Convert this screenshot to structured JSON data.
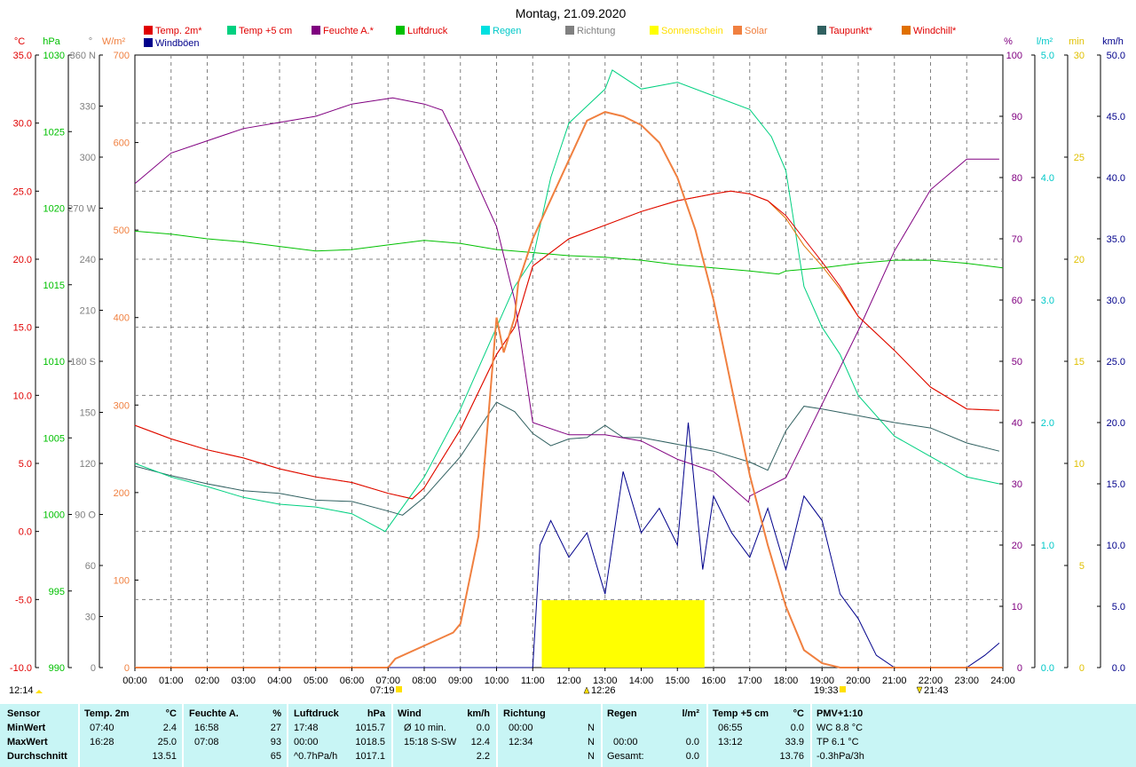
{
  "title": "Montag, 21.09.2020",
  "legend": [
    {
      "label": "Temp. 2m*",
      "color": "#e00000",
      "text_color": "#e00000"
    },
    {
      "label": "Temp +5 cm",
      "color": "#00d080",
      "text_color": "#e00000"
    },
    {
      "label": "Feuchte A.*",
      "color": "#800080",
      "text_color": "#e00000"
    },
    {
      "label": "Luftdruck",
      "color": "#00c000",
      "text_color": "#e00000"
    },
    {
      "label": "Regen",
      "color": "#00e0e0",
      "text_color": "#00c8c8"
    },
    {
      "label": "Richtung",
      "color": "#808080",
      "text_color": "#808080"
    },
    {
      "label": "Sonnenschein",
      "color": "#ffff00",
      "text_color": "#ffe000"
    },
    {
      "label": "Solar",
      "color": "#f08040",
      "text_color": "#f08040"
    },
    {
      "label": "Taupunkt*",
      "color": "#306060",
      "text_color": "#e00000"
    },
    {
      "label": "Windchill*",
      "color": "#e07000",
      "text_color": "#e00000"
    },
    {
      "label": "Windböen",
      "color": "#00008b",
      "text_color": "#00008b"
    }
  ],
  "axes": {
    "temp": {
      "unit": "°C",
      "color": "#e00000",
      "ticks": [
        "35.0",
        "30.0",
        "25.0",
        "20.0",
        "15.0",
        "10.0",
        "5.0",
        "0.0",
        "-5.0",
        "-10.0"
      ]
    },
    "pressure": {
      "unit": "hPa",
      "color": "#00c000",
      "ticks": [
        "1030",
        "1025",
        "1020",
        "1015",
        "1010",
        "1005",
        "1000",
        "995",
        "990"
      ]
    },
    "direction": {
      "unit": "°",
      "color": "#808080",
      "ticks": [
        "360 N",
        "330",
        "300",
        "270 W",
        "240",
        "210",
        "180 S",
        "150",
        "120",
        "90 O",
        "60",
        "30",
        "0"
      ]
    },
    "solar": {
      "unit": "W/m²",
      "color": "#f08040",
      "ticks": [
        "700",
        "600",
        "500",
        "400",
        "300",
        "200",
        "100",
        "0"
      ]
    },
    "humidity": {
      "unit": "%",
      "color": "#800080",
      "ticks": [
        "100",
        "90",
        "80",
        "70",
        "60",
        "50",
        "40",
        "30",
        "20",
        "10",
        "0"
      ]
    },
    "rain": {
      "unit": "l/m²",
      "color": "#00c8c8",
      "ticks": [
        "5.0",
        "4.0",
        "3.0",
        "2.0",
        "1.0",
        "0.0"
      ]
    },
    "sunshine": {
      "unit": "min",
      "color": "#e0c000",
      "ticks": [
        "30",
        "25",
        "20",
        "15",
        "10",
        "5",
        "0"
      ]
    },
    "wind": {
      "unit": "km/h",
      "color": "#00008b",
      "ticks": [
        "50.0",
        "45.0",
        "40.0",
        "35.0",
        "30.0",
        "25.0",
        "20.0",
        "15.0",
        "10.0",
        "5.0",
        "0.0"
      ]
    }
  },
  "time_ticks": [
    "00:00",
    "01:00",
    "02:00",
    "03:00",
    "04:00",
    "05:00",
    "06:00",
    "07:00",
    "08:00",
    "09:00",
    "10:00",
    "11:00",
    "12:00",
    "13:00",
    "14:00",
    "15:00",
    "16:00",
    "17:00",
    "18:00",
    "19:00",
    "20:00",
    "21:00",
    "22:00",
    "23:00",
    "24:00"
  ],
  "sun_markers": {
    "noon_left": "12:14",
    "sunrise": "07:19",
    "culmination": "12:26",
    "sunset": "19:33",
    "moonset": "21:43"
  },
  "stats": {
    "headers": {
      "sensor": "Sensor",
      "temp": "Temp. 2m",
      "temp_unit": "°C",
      "hum": "Feuchte A.",
      "hum_unit": "%",
      "press": "Luftdruck",
      "press_unit": "hPa",
      "wind": "Wind",
      "wind_unit": "km/h",
      "dir": "Richtung",
      "rain": "Regen",
      "rain_unit": "l/m²",
      "t5": "Temp +5 cm",
      "t5_unit": "°C",
      "pmv": "PMV+1:10"
    },
    "rows": [
      {
        "label": "MinWert",
        "temp_time": "07:40",
        "temp": "2.4",
        "hum_time": "16:58",
        "hum": "27",
        "press_time": "17:48",
        "press": "1015.7",
        "wind_label": "Ø 10 min.",
        "wind": "0.0",
        "dir_time": "00:00",
        "dir": "N",
        "rain_time": "",
        "rain": "",
        "t5_time": "06:55",
        "t5": "0.0",
        "pmv": "WC 8.8 °C"
      },
      {
        "label": "MaxWert",
        "temp_time": "16:28",
        "temp": "25.0",
        "hum_time": "07:08",
        "hum": "93",
        "press_time": "00:00",
        "press": "1018.5",
        "wind_label": "15:18   S-SW",
        "wind": "12.4",
        "dir_time": "12:34",
        "dir": "N",
        "rain_time": "00:00",
        "rain": "0.0",
        "t5_time": "13:12",
        "t5": "33.9",
        "pmv": "TP 6.1 °C"
      },
      {
        "label": "Durchschnitt",
        "temp_time": "",
        "temp": "13.51",
        "hum_time": "",
        "hum": "65",
        "press_time": "^0.7hPa/h",
        "press": "1017.1",
        "wind_label": "",
        "wind": "2.2",
        "dir_time": "",
        "dir": "N",
        "rain_time": "Gesamt:",
        "rain": "0.0",
        "t5_time": "",
        "t5": "13.76",
        "pmv": "-0.3hPa/3h"
      }
    ]
  },
  "chart_data": {
    "type": "line",
    "title": "Montag, 21.09.2020",
    "x_range": [
      "00:00",
      "24:00"
    ],
    "sunshine_block": {
      "start": "11:15",
      "end": "15:45",
      "minutes": 3.3
    },
    "series": [
      {
        "name": "Temp. 2m*",
        "unit": "°C",
        "x": [
          0,
          1,
          2,
          3,
          4,
          5,
          6,
          7,
          7.67,
          8,
          9,
          10,
          10.5,
          11,
          12,
          13,
          14,
          15,
          16,
          16.47,
          17,
          17.5,
          18,
          18.5,
          19,
          19.5,
          20,
          21,
          22,
          23,
          23.9
        ],
        "y": [
          7.8,
          6.8,
          6.0,
          5.4,
          4.6,
          4.0,
          3.6,
          2.8,
          2.4,
          3.2,
          7.5,
          13.0,
          15.0,
          19.5,
          21.5,
          22.5,
          23.5,
          24.3,
          24.8,
          25.0,
          24.8,
          24.3,
          23.2,
          21.5,
          19.8,
          18.0,
          15.8,
          13.3,
          10.6,
          9.0,
          8.9
        ]
      },
      {
        "name": "Temp +5 cm",
        "unit": "°C",
        "x": [
          0,
          1,
          2,
          3,
          4,
          5,
          6,
          6.92,
          7,
          8,
          9,
          10,
          10.5,
          11,
          11.5,
          12,
          13,
          13.2,
          14,
          15,
          16,
          17,
          17.6,
          18,
          18.5,
          19,
          19.5,
          20,
          21,
          22,
          23,
          23.9
        ],
        "y": [
          5.0,
          4.0,
          3.3,
          2.5,
          2.0,
          1.8,
          1.3,
          0.0,
          0.3,
          4.0,
          9.0,
          15.0,
          18.0,
          20.0,
          26.0,
          30.0,
          32.5,
          33.9,
          32.5,
          33.0,
          32.0,
          31.0,
          29.0,
          26.5,
          18.0,
          15.0,
          13.0,
          10.0,
          7.0,
          5.5,
          4.0,
          3.5
        ]
      },
      {
        "name": "Feuchte A.*",
        "unit": "%",
        "x": [
          0,
          1,
          2,
          3,
          4,
          5,
          6,
          7.13,
          8,
          8.5,
          9,
          10,
          10.5,
          11,
          12,
          13,
          14,
          15,
          16,
          16.97,
          17,
          18,
          19,
          20,
          21,
          22,
          23,
          23.9
        ],
        "y": [
          79,
          84,
          86,
          88,
          89,
          90,
          92,
          93,
          92,
          91,
          85,
          72,
          60,
          40,
          38,
          38,
          37,
          34,
          32,
          27,
          28,
          31,
          43,
          55,
          68,
          78,
          83,
          83
        ]
      },
      {
        "name": "Luftdruck",
        "unit": "hPa",
        "x": [
          0,
          1,
          2,
          3,
          4,
          5,
          6,
          7,
          8,
          9,
          10,
          11,
          12,
          13,
          14,
          15,
          16,
          17,
          17.8,
          18,
          19,
          20,
          21,
          22,
          23,
          24
        ],
        "y": [
          1018.5,
          1018.3,
          1018.0,
          1017.8,
          1017.5,
          1017.2,
          1017.3,
          1017.6,
          1017.9,
          1017.7,
          1017.3,
          1017.1,
          1016.9,
          1016.8,
          1016.6,
          1016.3,
          1016.1,
          1015.9,
          1015.7,
          1015.9,
          1016.1,
          1016.4,
          1016.6,
          1016.6,
          1016.4,
          1016.1
        ]
      },
      {
        "name": "Solar",
        "unit": "W/m²",
        "x": [
          0,
          7.0,
          7.2,
          8,
          8.8,
          9,
          9.5,
          10,
          10.2,
          10.5,
          10.6,
          11,
          12,
          12.5,
          13,
          13.5,
          14,
          14.5,
          15,
          15.5,
          16,
          16.5,
          17,
          17.5,
          18,
          18.5,
          19,
          19.5,
          19.6,
          20,
          24
        ],
        "y": [
          0,
          0,
          10,
          25,
          40,
          50,
          150,
          400,
          360,
          400,
          440,
          490,
          580,
          625,
          635,
          630,
          620,
          600,
          560,
          500,
          420,
          320,
          220,
          140,
          70,
          20,
          5,
          0,
          0,
          0,
          0
        ]
      },
      {
        "name": "Taupunkt*",
        "unit": "°C",
        "x": [
          0,
          1,
          2,
          3,
          4,
          5,
          6,
          7,
          7.4,
          8,
          9,
          10,
          10.5,
          11,
          11.5,
          12,
          12.5,
          13,
          13.5,
          14,
          15,
          16,
          17,
          17.5,
          18,
          18.5,
          19,
          20,
          21,
          22,
          23,
          23.9
        ],
        "y": [
          4.8,
          4.1,
          3.5,
          3.0,
          2.8,
          2.3,
          2.2,
          1.5,
          1.2,
          2.5,
          5.5,
          9.5,
          8.8,
          7.2,
          6.3,
          6.8,
          6.9,
          7.8,
          6.9,
          6.9,
          6.4,
          5.9,
          5.1,
          4.5,
          7.4,
          9.2,
          9.0,
          8.5,
          8.0,
          7.6,
          6.5,
          5.9
        ]
      },
      {
        "name": "Windchill*",
        "unit": "°C",
        "x": [
          0,
          1,
          2,
          3,
          4,
          5,
          6,
          7,
          7.67,
          8,
          9,
          10,
          10.5,
          11,
          12,
          13,
          14,
          15,
          16,
          16.47,
          17,
          17.5,
          18,
          18.5,
          19,
          19.5,
          20,
          21,
          22,
          23,
          23.9
        ],
        "y": [
          7.8,
          6.8,
          6.0,
          5.4,
          4.6,
          4.0,
          3.6,
          2.8,
          2.4,
          3.2,
          7.5,
          13.0,
          15.0,
          19.5,
          21.5,
          22.5,
          23.5,
          24.3,
          24.8,
          25.0,
          24.8,
          24.3,
          23.0,
          21.0,
          19.5,
          17.8,
          15.8,
          13.3,
          10.6,
          9.0,
          8.9
        ]
      },
      {
        "name": "Windböen",
        "unit": "km/h",
        "x": [
          0,
          11.0,
          11.2,
          11.5,
          12,
          12.5,
          13,
          13.5,
          14,
          14.5,
          15,
          15.3,
          15.7,
          16,
          16.5,
          17,
          17.5,
          18,
          18.5,
          19,
          19.5,
          20,
          20.5,
          21,
          22,
          23,
          23.5,
          23.9
        ],
        "y": [
          0,
          0,
          10,
          12,
          9,
          11,
          6,
          16,
          11,
          13,
          10,
          20,
          8,
          14,
          11,
          9,
          13,
          8,
          14,
          12,
          6,
          4,
          1,
          0,
          0,
          0,
          1,
          2
        ]
      }
    ]
  }
}
